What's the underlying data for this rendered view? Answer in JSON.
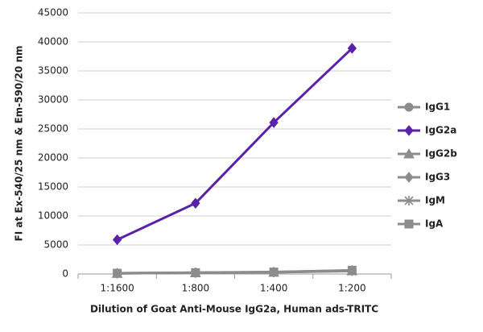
{
  "chart_data": {
    "type": "line",
    "x_label": "Dilution of Goat Anti-Mouse IgG2a, Human ads-TRITC",
    "y_label": "FI at Ex-540/25 nm & Em-590/20 nm",
    "categories": [
      "1:1600",
      "1:800",
      "1:400",
      "1:200"
    ],
    "ylim": [
      0,
      45000
    ],
    "yticks": [
      0,
      5000,
      10000,
      15000,
      20000,
      25000,
      30000,
      35000,
      40000,
      45000
    ],
    "grid": true,
    "legend": "right",
    "series": [
      {
        "name": "IgG1",
        "color": "#8c8c8c",
        "marker": "circle",
        "values": [
          150,
          250,
          350,
          600
        ]
      },
      {
        "name": "IgG2a",
        "color": "#5a22a8",
        "marker": "diamond",
        "values": [
          5900,
          12200,
          26100,
          38900
        ]
      },
      {
        "name": "IgG2b",
        "color": "#8c8c8c",
        "marker": "triangle",
        "values": [
          100,
          200,
          300,
          550
        ]
      },
      {
        "name": "IgG3",
        "color": "#8c8c8c",
        "marker": "diamond",
        "values": [
          120,
          220,
          320,
          600
        ]
      },
      {
        "name": "IgM",
        "color": "#8c8c8c",
        "marker": "star",
        "values": [
          100,
          200,
          300,
          500
        ]
      },
      {
        "name": "IgA",
        "color": "#8c8c8c",
        "marker": "square",
        "values": [
          130,
          230,
          330,
          650
        ]
      }
    ]
  }
}
